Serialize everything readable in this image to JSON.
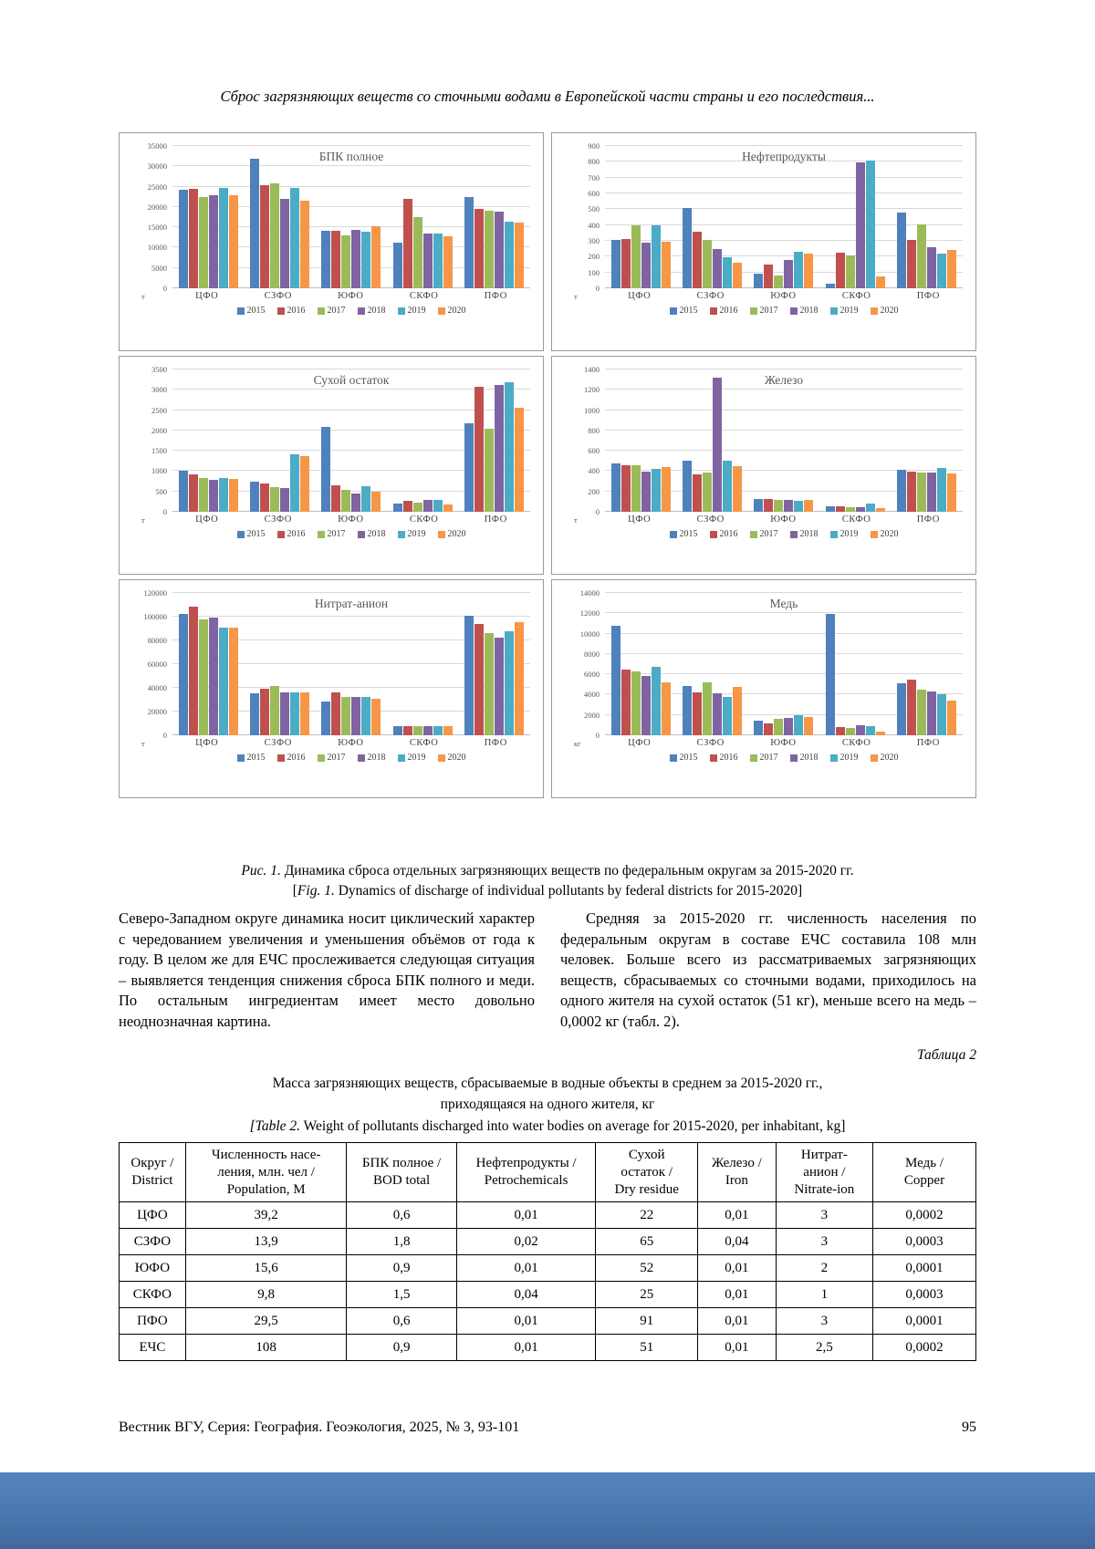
{
  "page": {
    "running_head": "Сброс загрязняющих веществ со сточными водами в Европейской части страны и его последствия...",
    "footer": {
      "journal_line": "Вестник ВГУ, Серия: География. Геоэкология, 2025, № 3, 93-101",
      "page_number": "95"
    }
  },
  "figure_caption": {
    "label_ru": "Рис. 1.",
    "text_ru": " Динамика сброса отдельных загрязняющих веществ по федеральным округам за 2015-2020 гг.",
    "bracket_open": "[",
    "label_en": "Fig. 1.",
    "text_en": " Dynamics of discharge of individual pollutants by federal districts for 2015-2020]"
  },
  "series_colors": [
    "#4F81BD",
    "#C0504D",
    "#9BBB59",
    "#8064A2",
    "#4BACC6",
    "#F79646"
  ],
  "chart_data": [
    {
      "type": "bar",
      "title": "БПК полное",
      "unit": "т",
      "categories": [
        "ЦФО",
        "СЗФО",
        "ЮФО",
        "СКФО",
        "ПФО"
      ],
      "ylim": [
        0,
        35000
      ],
      "ytick_step": 5000,
      "grid": true,
      "legend_position": "bottom",
      "series": [
        {
          "name": "2015",
          "values": [
            24200,
            31900,
            14200,
            11200,
            22500
          ]
        },
        {
          "name": "2016",
          "values": [
            24500,
            25300,
            14100,
            21900,
            19500
          ]
        },
        {
          "name": "2017",
          "values": [
            22500,
            25900,
            13000,
            17500,
            19000
          ]
        },
        {
          "name": "2018",
          "values": [
            22800,
            22000,
            14400,
            13500,
            18800
          ]
        },
        {
          "name": "2019",
          "values": [
            24600,
            24700,
            13900,
            13500,
            16300
          ]
        },
        {
          "name": "2020",
          "values": [
            22900,
            21500,
            15300,
            12900,
            16100
          ]
        }
      ]
    },
    {
      "type": "bar",
      "title": "Нефтепродукты",
      "unit": "т",
      "categories": [
        "ЦФО",
        "СЗФО",
        "ЮФО",
        "СКФО",
        "ПФО"
      ],
      "ylim": [
        0,
        900
      ],
      "ytick_step": 100,
      "grid": true,
      "legend_position": "bottom",
      "series": [
        {
          "name": "2015",
          "values": [
            305,
            505,
            90,
            30,
            480
          ]
        },
        {
          "name": "2016",
          "values": [
            312,
            360,
            152,
            224,
            308
          ]
        },
        {
          "name": "2017",
          "values": [
            400,
            303,
            80,
            208,
            403
          ]
        },
        {
          "name": "2018",
          "values": [
            290,
            248,
            178,
            797,
            258
          ]
        },
        {
          "name": "2019",
          "values": [
            400,
            197,
            233,
            806,
            220
          ]
        },
        {
          "name": "2020",
          "values": [
            295,
            163,
            222,
            77,
            240
          ]
        }
      ]
    },
    {
      "type": "bar",
      "title": "Сухой остаток",
      "unit": "т",
      "categories": [
        "ЦФО",
        "СЗФО",
        "ЮФО",
        "СКФО",
        "ПФО"
      ],
      "ylim": [
        0,
        3500
      ],
      "ytick_step": 500,
      "grid": true,
      "legend_position": "bottom",
      "series": [
        {
          "name": "2015",
          "values": [
            1010,
            740,
            2080,
            210,
            2180
          ]
        },
        {
          "name": "2016",
          "values": [
            930,
            690,
            640,
            260,
            3080
          ]
        },
        {
          "name": "2017",
          "values": [
            830,
            600,
            540,
            230,
            2050
          ]
        },
        {
          "name": "2018",
          "values": [
            790,
            590,
            460,
            300,
            3130
          ]
        },
        {
          "name": "2019",
          "values": [
            830,
            1420,
            630,
            290,
            3180
          ]
        },
        {
          "name": "2020",
          "values": [
            800,
            1380,
            490,
            170,
            2550
          ]
        }
      ]
    },
    {
      "type": "bar",
      "title": "Железо",
      "unit": "т",
      "categories": [
        "ЦФО",
        "СЗФО",
        "ЮФО",
        "СКФО",
        "ПФО"
      ],
      "ylim": [
        0,
        1400
      ],
      "ytick_step": 200,
      "grid": true,
      "legend_position": "bottom",
      "series": [
        {
          "name": "2015",
          "values": [
            475,
            507,
            130,
            55,
            410
          ]
        },
        {
          "name": "2016",
          "values": [
            462,
            372,
            125,
            50,
            398
          ]
        },
        {
          "name": "2017",
          "values": [
            462,
            383,
            118,
            45,
            388
          ]
        },
        {
          "name": "2018",
          "values": [
            393,
            1320,
            115,
            45,
            390
          ]
        },
        {
          "name": "2019",
          "values": [
            422,
            500,
            110,
            85,
            430
          ]
        },
        {
          "name": "2020",
          "values": [
            440,
            445,
            113,
            35,
            380
          ]
        }
      ]
    },
    {
      "type": "bar",
      "title": "Нитрат-анион",
      "unit": "т",
      "categories": [
        "ЦФО",
        "СЗФО",
        "ЮФО",
        "СКФО",
        "ПФО"
      ],
      "ylim": [
        0,
        120000
      ],
      "ytick_step": 20000,
      "grid": true,
      "legend_position": "bottom",
      "series": [
        {
          "name": "2015",
          "values": [
            102500,
            35500,
            28500,
            8000,
            100500
          ]
        },
        {
          "name": "2016",
          "values": [
            108500,
            39000,
            36000,
            8000,
            94000
          ]
        },
        {
          "name": "2017",
          "values": [
            97500,
            41500,
            32500,
            8000,
            86000
          ]
        },
        {
          "name": "2018",
          "values": [
            99500,
            36500,
            32500,
            8000,
            82500
          ]
        },
        {
          "name": "2019",
          "values": [
            90500,
            36000,
            32000,
            8000,
            88000
          ]
        },
        {
          "name": "2020",
          "values": [
            91000,
            36500,
            31000,
            7500,
            95500
          ]
        }
      ]
    },
    {
      "type": "bar",
      "title": "Медь",
      "unit": "кг",
      "categories": [
        "ЦФО",
        "СЗФО",
        "ЮФО",
        "СКФО",
        "ПФО"
      ],
      "ylim": [
        0,
        14000
      ],
      "ytick_step": 2000,
      "grid": true,
      "legend_position": "bottom",
      "series": [
        {
          "name": "2015",
          "values": [
            10750,
            4850,
            1400,
            11950,
            5100
          ]
        },
        {
          "name": "2016",
          "values": [
            6450,
            4250,
            1200,
            800,
            5450
          ]
        },
        {
          "name": "2017",
          "values": [
            6250,
            5200,
            1600,
            700,
            4450
          ]
        },
        {
          "name": "2018",
          "values": [
            5850,
            4100,
            1750,
            1000,
            4300
          ]
        },
        {
          "name": "2019",
          "values": [
            6750,
            3750,
            1950,
            900,
            4000
          ]
        },
        {
          "name": "2020",
          "values": [
            5250,
            4800,
            1800,
            400,
            3400
          ]
        }
      ]
    }
  ],
  "body_text": {
    "left": "Северо-Западном округе динамика носит циклический характер с чередованием увеличения и уменьшения объёмов от года к году. В целом же для ЕЧС прослеживается следующая ситуация – выявляется тенденция снижения сброса БПК полного и меди. По остальным ингредиентам имеет место довольно неоднозначная картина.",
    "right": "Средняя за 2015-2020 гг. численность населения по федеральным округам в составе ЕЧС составила 108 млн человек. Больше всего из рассматриваемых загрязняющих веществ, сбрасываемых со сточными водами, приходилось на одного жителя на сухой остаток (51 кг), меньше всего на медь – 0,0002 кг (табл. 2)."
  },
  "table2": {
    "label": "Таблица 2",
    "title_ru": "Масса загрязняющих веществ, сбрасываемые в водные объекты в среднем за 2015-2020 гг.,\nприходящаяся на одного жителя, кг",
    "label_en": "[Table 2.",
    "title_en": " Weight of pollutants discharged into water bodies on average for 2015-2020, per inhabitant, kg]",
    "headers": [
      "Округ /\nDistrict",
      "Численность насе-\nления, млн. чел /\nPopulation, M",
      "БПК полное /\nBOD total",
      "Нефтепродукты /\nPetrochemicals",
      "Сухой\nостаток /\nDry residue",
      "Железо /\nIron",
      "Нитрат-\nанион /\nNitrate-ion",
      "Медь /\nCopper"
    ],
    "rows": [
      [
        "ЦФО",
        "39,2",
        "0,6",
        "0,01",
        "22",
        "0,01",
        "3",
        "0,0002"
      ],
      [
        "СЗФО",
        "13,9",
        "1,8",
        "0,02",
        "65",
        "0,04",
        "3",
        "0,0003"
      ],
      [
        "ЮФО",
        "15,6",
        "0,9",
        "0,01",
        "52",
        "0,01",
        "2",
        "0,0001"
      ],
      [
        "СКФО",
        "9,8",
        "1,5",
        "0,04",
        "25",
        "0,01",
        "1",
        "0,0003"
      ],
      [
        "ПФО",
        "29,5",
        "0,6",
        "0,01",
        "91",
        "0,01",
        "3",
        "0,0001"
      ],
      [
        "ЕЧС",
        "108",
        "0,9",
        "0,01",
        "51",
        "0,01",
        "2,5",
        "0,0002"
      ]
    ]
  }
}
